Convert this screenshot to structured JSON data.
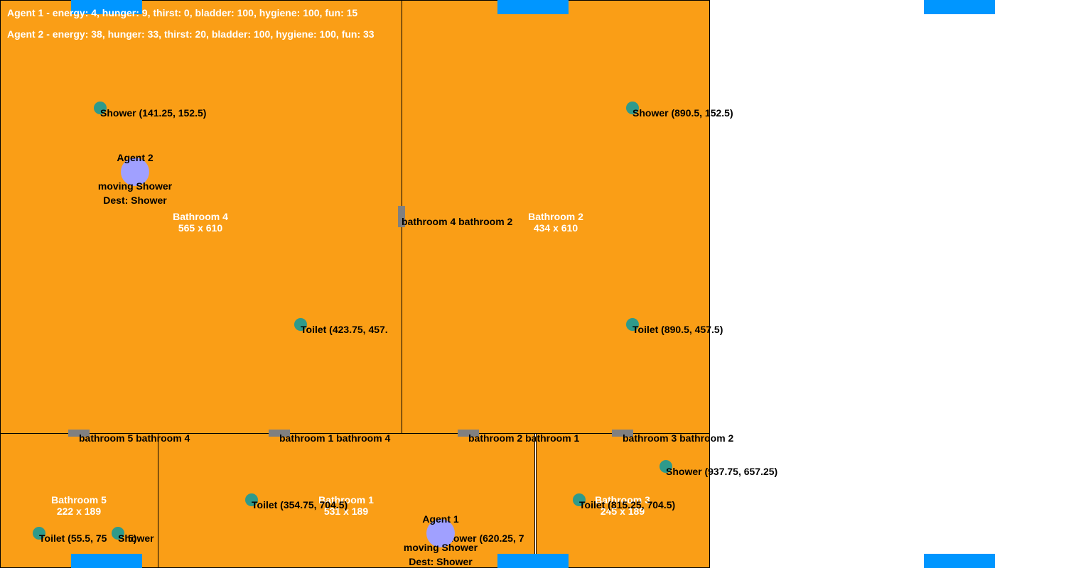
{
  "colors": {
    "room_fill": "#fa9e16",
    "object_dot": "#2f9a8b",
    "door": "#808080",
    "spawn": "#0096ff",
    "agent": "#a0a0ff"
  },
  "status": [
    "Agent 1 - energy: 4, hunger: 9, thirst: 0, bladder: 100, hygiene: 100, fun: 15",
    "Agent 2 - energy: 38, hunger: 33, thirst: 20, bladder: 100, hygiene: 100, fun: 33"
  ],
  "rooms": [
    {
      "name": "Bathroom 4",
      "size": "565 x 610"
    },
    {
      "name": "Bathroom 2",
      "size": "434 x 610"
    },
    {
      "name": "Bathroom 5",
      "size": "222 x 189"
    },
    {
      "name": "Bathroom 1",
      "size": "531 x 189"
    },
    {
      "name": "Bathroom 3",
      "size": "245 x 189"
    }
  ],
  "objects": [
    {
      "label": "Shower (141.25, 152.5)",
      "icon": "shower-icon"
    },
    {
      "label": "Shower (890.5, 152.5)",
      "icon": "shower-icon"
    },
    {
      "label": "Toilet (423.75, 457.",
      "icon": "toilet-icon"
    },
    {
      "label": "Toilet (890.5, 457.5)",
      "icon": "toilet-icon"
    },
    {
      "label": "Shower (937.75, 657.25)",
      "icon": "shower-icon"
    },
    {
      "label": "Toilet (354.75, 704.5)",
      "icon": "toilet-icon"
    },
    {
      "label": "Toilet (815.25, 704.5)",
      "icon": "toilet-icon"
    },
    {
      "label": "Toilet (55.5, 75",
      "icon": "toilet-icon"
    },
    {
      "label": "Shower",
      "icon": "shower-icon"
    },
    {
      "label": "5)",
      "icon": ""
    },
    {
      "label": "Shower (620.25, 7",
      "icon": "shower-icon"
    }
  ],
  "doors": [
    {
      "label": "bathroom 4 bathroom 2"
    },
    {
      "label": "bathroom 5 bathroom 4"
    },
    {
      "label": "bathroom 1 bathroom 4"
    },
    {
      "label": "bathroom 2 bathroom 1"
    },
    {
      "label": "bathroom 3 bathroom 2"
    }
  ],
  "agents": [
    {
      "name": "Agent 2",
      "state": "moving Shower",
      "dest": "Dest: Shower"
    },
    {
      "name": "Agent 1",
      "state": "moving Shower",
      "dest": "Dest: Shower"
    }
  ]
}
